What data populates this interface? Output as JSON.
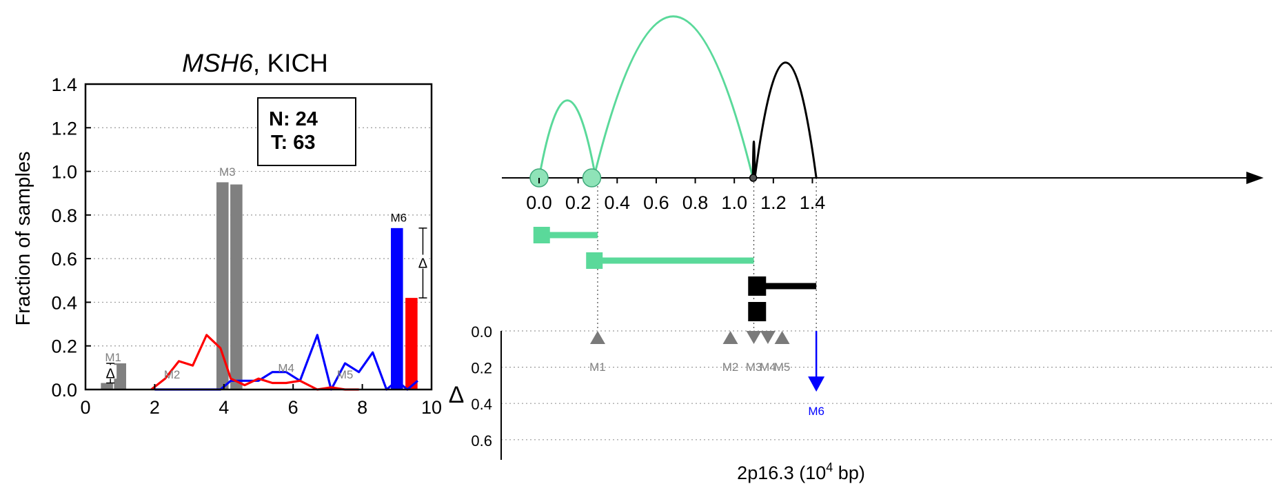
{
  "colors": {
    "gray": "#808080",
    "blue": "#0000ff",
    "red": "#ff0000",
    "green": "#5ad99a",
    "black": "#000000"
  },
  "chart_data": [
    {
      "type": "bar",
      "title_gene": "MSH6",
      "title_rest": ", KICH",
      "ylabel": "Fraction of samples",
      "xlim": [
        0,
        10
      ],
      "ylim": [
        0,
        1.4
      ],
      "xticks": [
        "0",
        "2",
        "4",
        "6",
        "8",
        "10"
      ],
      "yticks": [
        "0.0",
        "0.2",
        "0.4",
        "0.6",
        "0.8",
        "1.0",
        "1.2",
        "1.4"
      ],
      "grid": "horizontal dotted",
      "counts_box": {
        "n_label": "N: 24",
        "t_label": "T: 63"
      },
      "bars": [
        {
          "x": 0.62,
          "value": 0.03,
          "color": "gray"
        },
        {
          "x": 1.0,
          "value": 0.12,
          "color": "gray"
        },
        {
          "x": 3.96,
          "value": 0.95,
          "color": "gray"
        },
        {
          "x": 4.36,
          "value": 0.94,
          "color": "gray"
        },
        {
          "x": 9.0,
          "value": 0.74,
          "color": "blue"
        },
        {
          "x": 9.42,
          "value": 0.42,
          "color": "red"
        }
      ],
      "series": [
        {
          "color": "blue",
          "x": [
            2.0,
            2.5,
            3.0,
            3.5,
            3.9,
            4.2,
            4.6,
            5.0,
            5.4,
            5.8,
            6.2,
            6.7,
            7.1,
            7.5,
            7.9,
            8.3,
            8.7,
            9.0,
            9.3,
            9.6
          ],
          "y": [
            0.0,
            0.0,
            0.0,
            0.0,
            0.0,
            0.04,
            0.04,
            0.04,
            0.08,
            0.08,
            0.04,
            0.25,
            0.0,
            0.12,
            0.08,
            0.17,
            0.0,
            0.04,
            0.0,
            0.04
          ]
        },
        {
          "color": "red",
          "x": [
            1.9,
            2.3,
            2.7,
            3.1,
            3.5,
            3.9,
            4.2,
            4.6,
            5.0,
            5.4,
            5.8,
            6.2,
            6.7,
            7.1,
            7.5,
            7.9
          ],
          "y": [
            0.0,
            0.05,
            0.13,
            0.11,
            0.25,
            0.19,
            0.05,
            0.02,
            0.05,
            0.03,
            0.03,
            0.04,
            0.0,
            0.01,
            0.0,
            0.0
          ]
        }
      ],
      "annotations": [
        {
          "text": "M1",
          "x": 0.8,
          "y": 0.13,
          "color": "gray"
        },
        {
          "text": "M2",
          "x": 2.5,
          "y": 0.05,
          "color": "gray"
        },
        {
          "text": "M3",
          "x": 4.1,
          "y": 0.98,
          "color": "gray"
        },
        {
          "text": "M4",
          "x": 5.8,
          "y": 0.08,
          "color": "gray"
        },
        {
          "text": "M5",
          "x": 7.5,
          "y": 0.05,
          "color": "gray"
        },
        {
          "text": "M6",
          "x": 9.05,
          "y": 0.77,
          "color": "black"
        }
      ],
      "deltas": [
        {
          "x": 0.72,
          "y_low": 0.03,
          "y_high": 0.12,
          "symbol": "Δ"
        },
        {
          "x": 9.75,
          "y_low": 0.42,
          "y_high": 0.74,
          "symbol": "Δ"
        }
      ]
    },
    {
      "type": "arc-diagram",
      "xlabel_prefix": "2p16.3 (10",
      "xlabel_exp": "4",
      "xlabel_suffix": " bp)",
      "xlim": [
        -0.05,
        1.5
      ],
      "xticks": [
        "0.0",
        "0.2",
        "0.4",
        "0.6",
        "0.8",
        "1.0",
        "1.2",
        "1.4"
      ],
      "delta_label": "Δ",
      "delta_ticks": [
        "0.0",
        "0.2",
        "0.4",
        "0.6"
      ],
      "nodes": [
        {
          "x": 0.0,
          "color": "green",
          "size": "large"
        },
        {
          "x": 0.27,
          "color": "green",
          "size": "large"
        },
        {
          "x": 1.097,
          "color": "gray",
          "size": "small"
        }
      ],
      "arcs": [
        {
          "from": 0.0,
          "to": 0.29,
          "height": 0.47,
          "color": "green"
        },
        {
          "from": 0.28,
          "to": 1.095,
          "height": 0.98,
          "color": "green"
        },
        {
          "from": 1.095,
          "to": 1.105,
          "height": 0.22,
          "color": "black"
        },
        {
          "from": 1.105,
          "to": 1.42,
          "height": 0.7,
          "color": "black"
        }
      ],
      "isoforms": [
        {
          "start": -0.015,
          "end": 0.3,
          "level": 0,
          "color": "green"
        },
        {
          "start": 0.255,
          "end": 1.1,
          "level": 1,
          "color": "green"
        },
        {
          "start": 1.085,
          "end": 1.42,
          "level": 2,
          "color": "black"
        },
        {
          "start": 1.085,
          "end": 1.1,
          "level": 3,
          "color": "black"
        }
      ],
      "markers": [
        {
          "label": "M1",
          "x": 0.3,
          "delta": 0.0,
          "direction": "up",
          "color": "gray"
        },
        {
          "label": "M2",
          "x": 0.98,
          "delta": 0.0,
          "direction": "up",
          "color": "gray"
        },
        {
          "label": "M3",
          "x": 1.1,
          "delta": 0.0,
          "direction": "down",
          "color": "gray"
        },
        {
          "label": "M4",
          "x": 1.172,
          "delta": 0.0,
          "direction": "down",
          "color": "gray"
        },
        {
          "label": "M5",
          "x": 1.245,
          "delta": 0.0,
          "direction": "up",
          "color": "gray"
        },
        {
          "label": "M6",
          "x": 1.42,
          "delta": 0.32,
          "direction": "down",
          "color": "blue"
        }
      ],
      "guides": [
        0.3,
        1.1,
        1.42
      ]
    }
  ]
}
